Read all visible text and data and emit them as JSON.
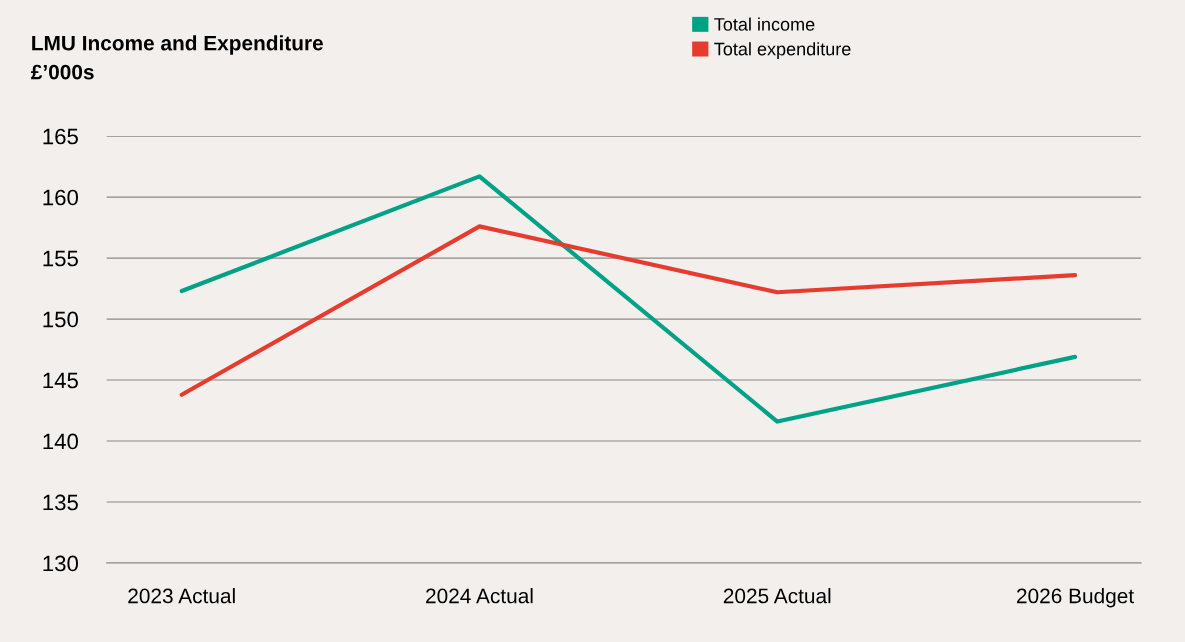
{
  "chart_data": {
    "type": "line",
    "title": "LMU Income and Expenditure",
    "ylabel": "£’000s",
    "categories": [
      "2023 Actual",
      "2024 Actual",
      "2025 Actual",
      "2026 Budget"
    ],
    "series": [
      {
        "name": "Total income",
        "color": "#00a287",
        "values": [
          152.3,
          161.7,
          141.6,
          146.9
        ]
      },
      {
        "name": "Total expenditure",
        "color": "#e63c2f",
        "values": [
          143.8,
          157.6,
          152.2,
          153.6
        ]
      }
    ],
    "ylim": [
      130,
      165
    ],
    "yticks": [
      130,
      135,
      140,
      145,
      150,
      155,
      160,
      165
    ],
    "grid": "y",
    "legend": "top right",
    "marker": "none",
    "line_style": "solid"
  }
}
